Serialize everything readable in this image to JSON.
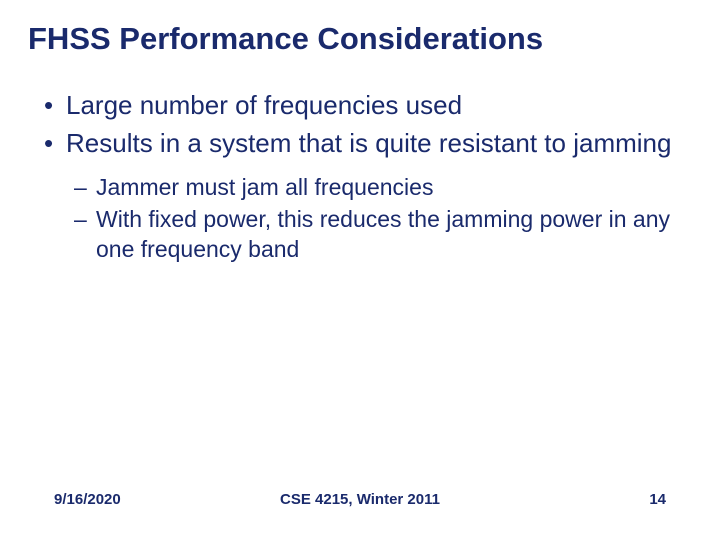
{
  "colors": {
    "text": "#1a2a6c",
    "background": "#ffffff"
  },
  "typography": {
    "title_fontsize": 31,
    "title_weight": "bold",
    "level1_fontsize": 26,
    "level2_fontsize": 23,
    "footer_fontsize": 15,
    "footer_weight": "bold",
    "font_family": "Arial"
  },
  "title": "FHSS Performance Considerations",
  "bullets": [
    {
      "level": 1,
      "text": "Large number of frequencies used"
    },
    {
      "level": 1,
      "text": "Results in a system that is quite resistant to jamming"
    }
  ],
  "subbullets": [
    {
      "level": 2,
      "text": "Jammer must jam all frequencies"
    },
    {
      "level": 2,
      "text": "With fixed power, this reduces the jamming power in any one frequency band"
    }
  ],
  "footer": {
    "date": "9/16/2020",
    "course": "CSE 4215, Winter 2011",
    "page": "14"
  }
}
